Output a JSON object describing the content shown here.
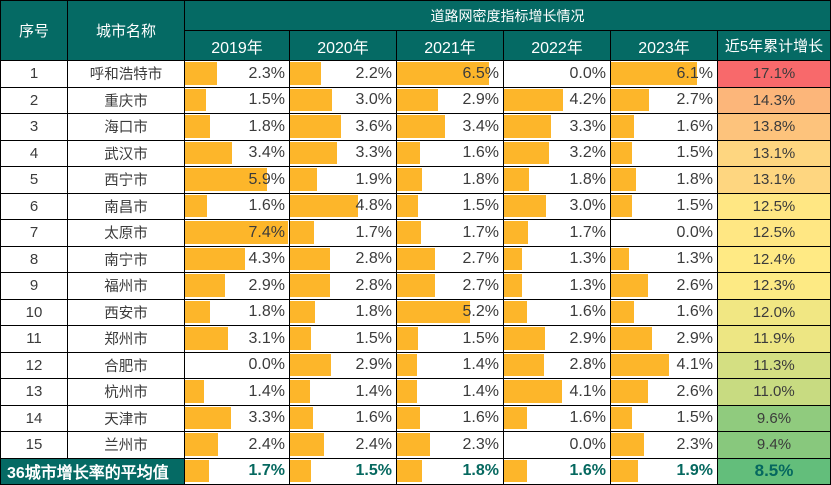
{
  "window_title": "道路网密度指标增长情况",
  "colors": {
    "header_teal": "#056A64",
    "bar_orange": "#FDB62A",
    "grid_black": "#000000",
    "text_dark": "#3B3B3B",
    "text_white": "#FFFFFF",
    "avg_text_teal": "#05685F"
  },
  "header": {
    "col_no": "序号",
    "col_city": "城市名称",
    "group_title": "道路网密度指标增长情况",
    "years": [
      "2019年",
      "2020年",
      "2021年",
      "2022年",
      "2023年"
    ],
    "col_total": "近5年累计增长"
  },
  "chart_data": {
    "type": "table",
    "title": "道路网密度指标增长情况",
    "columns": [
      "序号",
      "城市名称",
      "2019年",
      "2020年",
      "2021年",
      "2022年",
      "2023年",
      "近5年累计增长"
    ],
    "bar_max": 7.5,
    "bar_color": "#FDB62A",
    "total_colorscale": {
      "min_green": "#63BE7B",
      "mid_yellow": "#FFEB84",
      "max_red": "#F8696B"
    },
    "rows": [
      {
        "no": "1",
        "city": "呼和浩特市",
        "values": [
          "2.3%",
          "2.2%",
          "6.5%",
          "0.0%",
          "6.1%"
        ],
        "total": "17.1%",
        "total_bg": "#F8696B"
      },
      {
        "no": "2",
        "city": "重庆市",
        "values": [
          "1.5%",
          "3.0%",
          "2.9%",
          "4.2%",
          "2.7%"
        ],
        "total": "14.3%",
        "total_bg": "#FCB67A"
      },
      {
        "no": "3",
        "city": "海口市",
        "values": [
          "1.8%",
          "3.6%",
          "3.4%",
          "3.3%",
          "1.6%"
        ],
        "total": "13.8%",
        "total_bg": "#FDC37C"
      },
      {
        "no": "4",
        "city": "武汉市",
        "values": [
          "3.4%",
          "3.3%",
          "1.6%",
          "3.2%",
          "1.5%"
        ],
        "total": "13.1%",
        "total_bg": "#FED680"
      },
      {
        "no": "5",
        "city": "西宁市",
        "values": [
          "5.9%",
          "1.9%",
          "1.8%",
          "1.8%",
          "1.8%"
        ],
        "total": "13.1%",
        "total_bg": "#FED680"
      },
      {
        "no": "6",
        "city": "南昌市",
        "values": [
          "1.6%",
          "4.8%",
          "1.5%",
          "3.0%",
          "1.5%"
        ],
        "total": "12.5%",
        "total_bg": "#FFE783"
      },
      {
        "no": "7",
        "city": "太原市",
        "values": [
          "7.4%",
          "1.7%",
          "1.7%",
          "1.7%",
          "0.0%"
        ],
        "total": "12.5%",
        "total_bg": "#FFE783"
      },
      {
        "no": "8",
        "city": "南宁市",
        "values": [
          "4.3%",
          "2.8%",
          "2.7%",
          "1.3%",
          "1.3%"
        ],
        "total": "12.4%",
        "total_bg": "#FFEA84"
      },
      {
        "no": "9",
        "city": "福州市",
        "values": [
          "2.9%",
          "2.8%",
          "2.7%",
          "1.3%",
          "2.6%"
        ],
        "total": "12.3%",
        "total_bg": "#FDEA84"
      },
      {
        "no": "10",
        "city": "西安市",
        "values": [
          "1.8%",
          "1.8%",
          "5.2%",
          "1.6%",
          "1.6%"
        ],
        "total": "12.0%",
        "total_bg": "#F1E783"
      },
      {
        "no": "11",
        "city": "郑州市",
        "values": [
          "3.1%",
          "1.5%",
          "1.5%",
          "2.9%",
          "2.9%"
        ],
        "total": "11.9%",
        "total_bg": "#EDE683"
      },
      {
        "no": "12",
        "city": "合肥市",
        "values": [
          "0.0%",
          "2.9%",
          "1.4%",
          "2.8%",
          "4.1%"
        ],
        "total": "11.3%",
        "total_bg": "#D4DF82"
      },
      {
        "no": "13",
        "city": "杭州市",
        "values": [
          "1.4%",
          "1.4%",
          "1.4%",
          "4.1%",
          "2.6%"
        ],
        "total": "11.0%",
        "total_bg": "#C8DB81"
      },
      {
        "no": "14",
        "city": "天津市",
        "values": [
          "3.3%",
          "1.6%",
          "1.6%",
          "1.6%",
          "1.5%"
        ],
        "total": "9.6%",
        "total_bg": "#90CB7E"
      },
      {
        "no": "15",
        "city": "兰州市",
        "values": [
          "2.4%",
          "2.4%",
          "2.3%",
          "0.0%",
          "2.3%"
        ],
        "total": "9.4%",
        "total_bg": "#88C87D"
      }
    ],
    "average_row": {
      "label": "36城市增长率的平均值",
      "values": [
        "1.7%",
        "1.5%",
        "1.8%",
        "1.6%",
        "1.9%"
      ],
      "total": "8.5%",
      "total_bg": "#63BE7B"
    }
  }
}
